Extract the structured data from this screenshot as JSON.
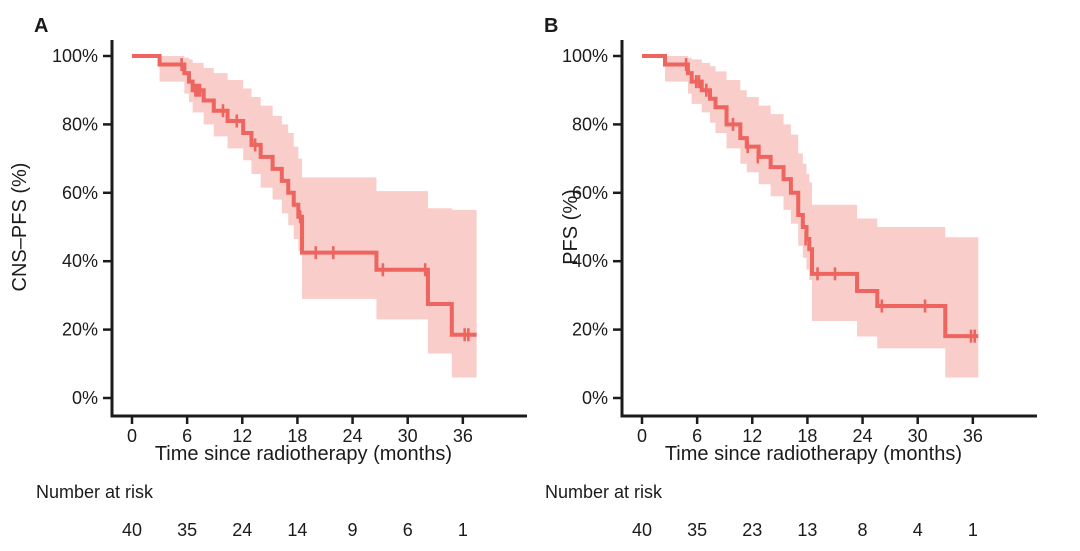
{
  "figure": {
    "background": "#ffffff",
    "line_color": "#ee645f",
    "band_color": "#f9cdca",
    "axis_color": "#1b1b1b",
    "text_color": "#1b1b1b"
  },
  "chart_data": [
    {
      "type": "line",
      "subtype": "kaplan-meier-step",
      "panel_label": "A",
      "xlabel": "Time since radiotherapy (months)",
      "ylabel": "CNS–PFS (%)",
      "xlim": [
        0,
        39
      ],
      "ylim": [
        0,
        100
      ],
      "x_ticks": [
        0,
        6,
        12,
        18,
        24,
        30,
        36
      ],
      "y_tick_labels": [
        "100%",
        "80%",
        "60%",
        "40%",
        "20%",
        "0%"
      ],
      "y_tick_values": [
        100,
        80,
        60,
        40,
        20,
        0
      ],
      "grid": false,
      "legend": "none",
      "curve_end_month": 37.5,
      "survival_steps": [
        [
          0,
          100
        ],
        [
          3,
          97.5
        ],
        [
          5.7,
          95
        ],
        [
          6.2,
          92.5
        ],
        [
          6.6,
          90
        ],
        [
          7.8,
          87
        ],
        [
          8.9,
          84
        ],
        [
          10.4,
          81
        ],
        [
          12.1,
          77.5
        ],
        [
          13,
          74
        ],
        [
          14,
          70.5
        ],
        [
          15.3,
          67
        ],
        [
          16.3,
          63.5
        ],
        [
          17,
          60
        ],
        [
          17.6,
          56.5
        ],
        [
          18.1,
          53
        ],
        [
          18.5,
          42.5
        ],
        [
          26.6,
          37.5
        ],
        [
          32.2,
          27.5
        ],
        [
          34.8,
          18.5
        ]
      ],
      "censor_marks": [
        [
          5.4,
          97.5
        ],
        [
          6.9,
          90
        ],
        [
          7.15,
          90
        ],
        [
          7.4,
          90
        ],
        [
          9.9,
          84
        ],
        [
          11.4,
          81
        ],
        [
          13.4,
          74
        ],
        [
          18.3,
          53
        ],
        [
          20,
          42.5
        ],
        [
          21.9,
          42.5
        ],
        [
          27.3,
          37.5
        ],
        [
          31.9,
          37.5
        ],
        [
          36.2,
          18.5
        ],
        [
          36.6,
          18.5
        ]
      ],
      "confidence_band": [
        [
          3,
          100,
          92.5
        ],
        [
          5.7,
          99.5,
          89
        ],
        [
          6.2,
          99,
          86.5
        ],
        [
          6.6,
          98,
          83.5
        ],
        [
          7.8,
          96.5,
          80
        ],
        [
          8.9,
          95,
          76.5
        ],
        [
          10.4,
          93,
          73
        ],
        [
          12.1,
          90.5,
          69.5
        ],
        [
          13,
          88,
          65.5
        ],
        [
          14,
          85.5,
          61.5
        ],
        [
          15.3,
          82.5,
          58
        ],
        [
          16.3,
          80,
          54
        ],
        [
          17,
          77.5,
          50.5
        ],
        [
          17.6,
          73.5,
          46.5
        ],
        [
          18.1,
          70,
          43
        ],
        [
          18.5,
          64.5,
          29
        ],
        [
          26.6,
          60.5,
          23
        ],
        [
          32.2,
          55.5,
          13
        ],
        [
          34.8,
          55,
          6
        ]
      ],
      "risk_table": {
        "label": "Number at risk",
        "times": [
          0,
          6,
          12,
          18,
          24,
          30,
          36
        ],
        "values": [
          40,
          35,
          24,
          14,
          9,
          6,
          1
        ]
      }
    },
    {
      "type": "line",
      "subtype": "kaplan-meier-step",
      "panel_label": "B",
      "xlabel": "Time since radiotherapy (months)",
      "ylabel": "PFS (%)",
      "xlim": [
        0,
        39
      ],
      "ylim": [
        0,
        100
      ],
      "x_ticks": [
        0,
        6,
        12,
        18,
        24,
        30,
        36
      ],
      "y_tick_labels": [
        "100%",
        "80%",
        "60%",
        "40%",
        "20%",
        "0%"
      ],
      "y_tick_values": [
        100,
        80,
        60,
        40,
        20,
        0
      ],
      "grid": false,
      "legend": "none",
      "curve_end_month": 36.6,
      "survival_steps": [
        [
          0,
          100
        ],
        [
          2.5,
          97.5
        ],
        [
          5,
          95
        ],
        [
          5.4,
          92.5
        ],
        [
          6.5,
          90
        ],
        [
          7.4,
          87.5
        ],
        [
          8,
          85
        ],
        [
          9.2,
          80
        ],
        [
          10.7,
          76
        ],
        [
          11.4,
          73.5
        ],
        [
          12.7,
          70.5
        ],
        [
          14,
          67.5
        ],
        [
          15.4,
          64
        ],
        [
          16.2,
          60
        ],
        [
          17,
          53.5
        ],
        [
          17.5,
          50
        ],
        [
          17.9,
          46.5
        ],
        [
          18.2,
          43.5
        ],
        [
          18.5,
          36.3
        ],
        [
          23.4,
          31.3
        ],
        [
          25.6,
          26.9
        ],
        [
          33,
          18.1
        ]
      ],
      "censor_marks": [
        [
          4.8,
          97.5
        ],
        [
          5.9,
          92.5
        ],
        [
          6.2,
          92.5
        ],
        [
          7,
          90
        ],
        [
          9.9,
          80
        ],
        [
          11.5,
          73.5
        ],
        [
          12.6,
          70.5
        ],
        [
          17.8,
          46.5
        ],
        [
          19.1,
          36.3
        ],
        [
          21,
          36.3
        ],
        [
          26.1,
          26.9
        ],
        [
          30.8,
          26.9
        ],
        [
          35.8,
          18.1
        ],
        [
          36.2,
          18.1
        ]
      ],
      "confidence_band": [
        [
          2.5,
          100,
          92.5
        ],
        [
          5,
          99.5,
          89
        ],
        [
          5.4,
          99,
          86
        ],
        [
          6.5,
          98,
          83.5
        ],
        [
          7.4,
          97,
          80.5
        ],
        [
          8,
          95.5,
          77.5
        ],
        [
          9.2,
          93,
          73
        ],
        [
          10.7,
          90,
          68.5
        ],
        [
          11.4,
          88,
          66
        ],
        [
          12.7,
          85.5,
          62.5
        ],
        [
          14,
          83,
          59
        ],
        [
          15.4,
          80,
          55
        ],
        [
          16.2,
          77,
          51
        ],
        [
          17,
          71.5,
          44.5
        ],
        [
          17.5,
          68.5,
          41
        ],
        [
          17.9,
          65.5,
          37.5
        ],
        [
          18.2,
          63,
          34.5
        ],
        [
          18.5,
          56.5,
          22.5
        ],
        [
          23.4,
          52.5,
          18
        ],
        [
          25.6,
          50,
          14.5
        ],
        [
          33,
          47,
          6
        ]
      ],
      "risk_table": {
        "label": "Number at risk",
        "times": [
          0,
          6,
          12,
          18,
          24,
          30,
          36
        ],
        "values": [
          40,
          35,
          23,
          13,
          8,
          4,
          1
        ]
      }
    }
  ]
}
